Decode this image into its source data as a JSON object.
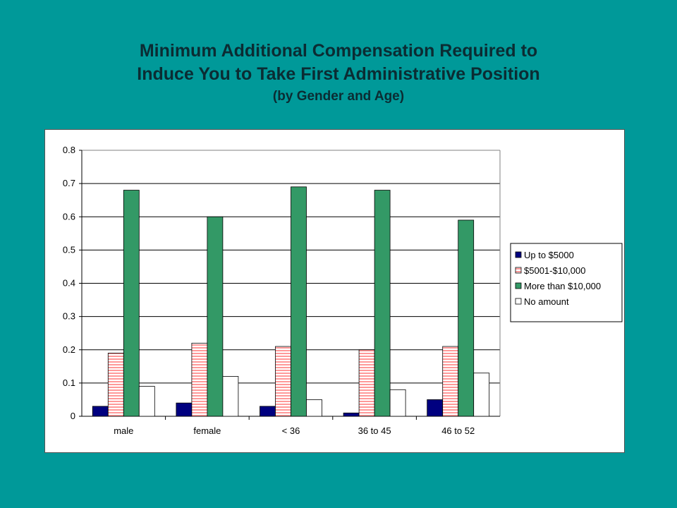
{
  "title": {
    "line1": "Minimum Additional Compensation Required to",
    "line2": "Induce You to Take First Administrative Position",
    "subtitle": "(by Gender and Age)"
  },
  "colors": {
    "background": "#009999",
    "up_to_5000": "#000080",
    "5001_10000_stripe": "#ff9999",
    "more_than_10000": "#339966",
    "no_amount": "#ffffff"
  },
  "chart_data": {
    "type": "bar",
    "categories": [
      "male",
      "female",
      "< 36",
      "36 to 45",
      "46 to 52"
    ],
    "series": [
      {
        "name": "Up to $5000",
        "values": [
          0.03,
          0.04,
          0.03,
          0.01,
          0.05
        ],
        "color": "#000080",
        "pattern": "solid"
      },
      {
        "name": "$5001-$10,000",
        "values": [
          0.19,
          0.22,
          0.21,
          0.2,
          0.21
        ],
        "color": "#ff9999",
        "pattern": "horizontal-stripes"
      },
      {
        "name": "More than $10,000",
        "values": [
          0.68,
          0.6,
          0.69,
          0.68,
          0.59
        ],
        "color": "#339966",
        "pattern": "solid"
      },
      {
        "name": "No amount",
        "values": [
          0.09,
          0.12,
          0.05,
          0.08,
          0.13
        ],
        "color": "#ffffff",
        "pattern": "solid"
      }
    ],
    "ylim": [
      0,
      0.8
    ],
    "yticks": [
      "0",
      "0.1",
      "0.2",
      "0.3",
      "0.4",
      "0.5",
      "0.6",
      "0.7",
      "0.8"
    ],
    "grid": true,
    "legend_position": "right"
  }
}
